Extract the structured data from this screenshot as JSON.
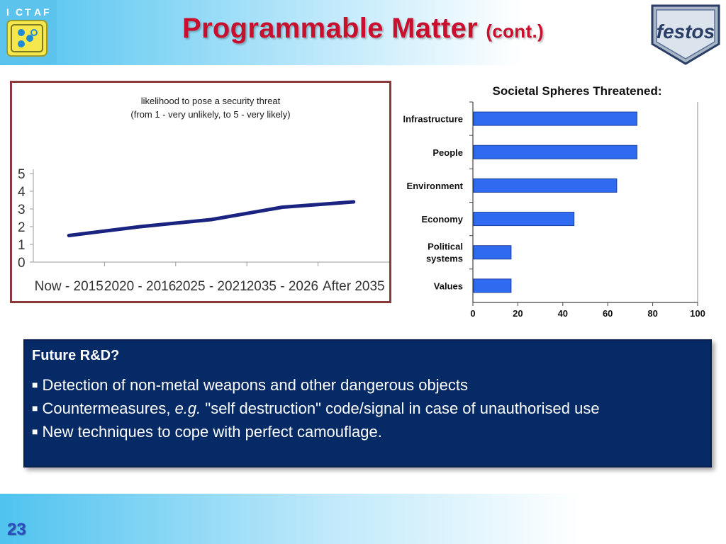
{
  "slide": {
    "title": "Programmable Matter",
    "title_suffix": "(cont.)",
    "page_number": "23",
    "colors": {
      "title": "#c8102e",
      "header_gradient": "#4fc3ef",
      "box": "#062a66",
      "bar": "#2f6bf1",
      "line": "#1a2380"
    }
  },
  "logos": {
    "ictaf": {
      "letters": [
        "I",
        "C",
        "T",
        "A",
        "F"
      ]
    },
    "festos": {
      "text": "festos"
    }
  },
  "research_box": {
    "heading": "Future R&D?",
    "bullets": [
      {
        "text": "Detection of non-metal weapons and other dangerous objects"
      },
      {
        "prefix": "Countermeasures, ",
        "emphasis": "e.g.",
        "suffix": " \"self destruction\" code/signal in case of unauthorised use"
      },
      {
        "text": "New techniques to cope with perfect camouflage."
      }
    ]
  },
  "chart_data": [
    {
      "type": "line",
      "title": "likelihood to pose a security threat",
      "subtitle": "(from 1 - very unlikely, to 5 - very likely)",
      "categories": [
        "Now - 2015",
        "2020 - 2016",
        "2025 - 2021",
        "2035 - 2026",
        "After 2035"
      ],
      "series": [
        {
          "values": [
            1.5,
            2.0,
            2.4,
            3.1,
            3.4
          ]
        }
      ],
      "yticks": [
        0,
        1,
        2,
        3,
        4,
        5
      ],
      "ylim": [
        0,
        5
      ],
      "grid": false,
      "color": "#1a2380"
    },
    {
      "type": "bar",
      "orientation": "horizontal",
      "title": "Societal Spheres Threatened:",
      "categories": [
        "Infrastructure",
        "People",
        "Environment",
        "Economy",
        "Political systems",
        "Values"
      ],
      "values": [
        73,
        73,
        64,
        45,
        17,
        17
      ],
      "xticks": [
        0,
        20,
        40,
        60,
        80,
        100
      ],
      "xlim": [
        0,
        100
      ],
      "grid": false,
      "color": "#2f6bf1"
    }
  ]
}
